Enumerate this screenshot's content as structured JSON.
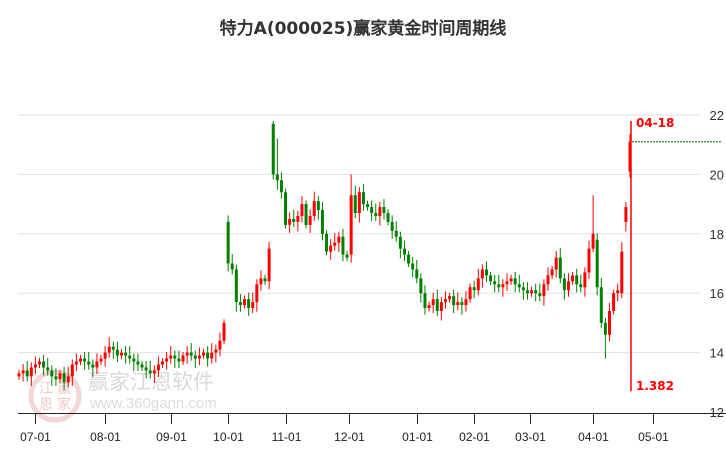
{
  "chart_data": {
    "type": "candlestick",
    "title": "特力A(000025)赢家黄金时间周期线",
    "ylim": [
      12,
      22
    ],
    "y_ticks": [
      12,
      14,
      16,
      18,
      20,
      22
    ],
    "grid": true,
    "x_ticks": [
      {
        "label": "07-01",
        "index": 4
      },
      {
        "label": "08-01",
        "index": 21
      },
      {
        "label": "09-01",
        "index": 37
      },
      {
        "label": "10-01",
        "index": 51
      },
      {
        "label": "11-01",
        "index": 65
      },
      {
        "label": "12-01",
        "index": 80.5
      },
      {
        "label": "01-01",
        "index": 97
      },
      {
        "label": "02-01",
        "index": 111
      },
      {
        "label": "03-01",
        "index": 124.6
      },
      {
        "label": "04-01",
        "index": 140
      },
      {
        "label": "05-01",
        "index": 154.6
      }
    ],
    "index_range": [
      0,
      149
    ],
    "close": [
      13.3,
      13.4,
      13.2,
      13.5,
      13.6,
      13.7,
      13.5,
      13.4,
      13.2,
      13.1,
      13.3,
      13.0,
      13.2,
      13.6,
      13.7,
      13.8,
      13.7,
      13.6,
      13.5,
      13.7,
      13.8,
      14.0,
      14.2,
      14.1,
      13.9,
      14.0,
      13.9,
      13.8,
      13.7,
      13.6,
      13.5,
      13.4,
      13.3,
      13.4,
      13.6,
      13.7,
      13.8,
      13.9,
      13.8,
      13.7,
      13.9,
      14.0,
      13.9,
      13.8,
      13.9,
      14.0,
      13.8,
      14.0,
      14.1,
      14.4,
      15.0,
      17.0,
      16.8,
      15.7,
      15.6,
      15.8,
      15.5,
      15.7,
      16.3,
      16.5,
      16.4,
      17.5,
      20.0,
      19.8,
      19.4,
      18.3,
      18.5,
      18.4,
      18.6,
      19.0,
      18.3,
      18.6,
      19.1,
      18.8,
      18.0,
      17.4,
      17.6,
      17.7,
      17.9,
      17.3,
      17.2,
      19.3,
      18.7,
      19.4,
      19.0,
      18.9,
      18.7,
      18.6,
      18.9,
      18.7,
      18.4,
      18.1,
      17.9,
      17.5,
      17.3,
      17.0,
      16.8,
      16.5,
      16.0,
      15.5,
      15.6,
      15.8,
      15.4,
      15.7,
      15.8,
      15.9,
      15.6,
      15.7,
      15.6,
      15.8,
      16.2,
      16.1,
      16.5,
      16.8,
      16.6,
      16.4,
      16.3,
      16.2,
      16.3,
      16.4,
      16.5,
      16.3,
      16.2,
      16.1,
      16.0,
      16.1,
      16.0,
      15.9,
      16.3,
      16.6,
      16.8,
      17.2,
      16.5,
      16.1,
      16.4,
      16.6,
      16.3,
      16.2,
      16.7,
      17.5,
      18.0,
      16.2,
      15.0,
      14.6,
      15.4,
      16.0,
      16.1,
      17.4,
      18.9,
      21.1
    ],
    "open_overrides": [
      {
        "index": 51,
        "open": 18.4
      },
      {
        "index": 62,
        "open": 21.7
      },
      {
        "index": 81,
        "open": 17.3
      },
      {
        "index": 141,
        "open": 17.8
      },
      {
        "index": 147,
        "open": 16.0
      },
      {
        "index": 148,
        "open": 18.4
      },
      {
        "index": 149,
        "open": 20.1
      }
    ],
    "extremes": [
      {
        "index": 62,
        "high": 21.8
      },
      {
        "index": 63,
        "high": 21.2
      },
      {
        "index": 81,
        "high": 20.0
      },
      {
        "index": 143,
        "low": 13.8
      },
      {
        "index": 140,
        "high": 19.3
      }
    ],
    "up_color": "#ff0000",
    "down_color": "#008000",
    "reference_line": {
      "value": 21.1,
      "color": "#006400"
    },
    "cycle_marker": {
      "index": 149,
      "top_label": "04-18",
      "bottom_label": "1.382",
      "top": 21.8,
      "bottom": 12.7,
      "color": "#ff0000"
    },
    "watermark": {
      "brand": "赢家江恩软件",
      "url": "www.360gann.com",
      "seal": [
        "江",
        "赢",
        "恩",
        "家"
      ]
    }
  }
}
